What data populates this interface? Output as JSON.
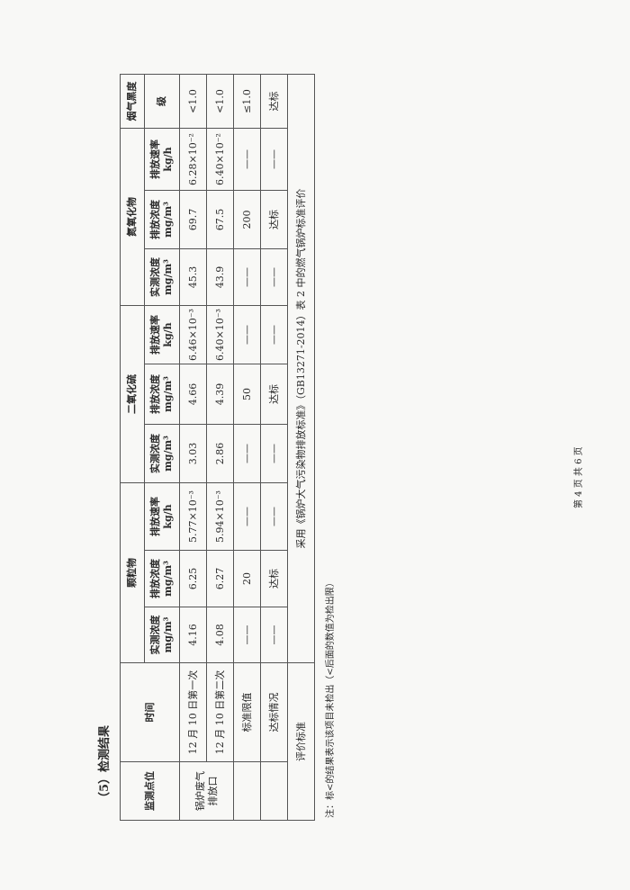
{
  "section_title": "（5）检测结果",
  "headers": {
    "location": "监测点位",
    "time": "时间",
    "groups": [
      "颗粒物",
      "二氧化硫",
      "氮氧化物",
      "烟气黑度"
    ],
    "measured_conc": "实测浓度",
    "emission_conc": "排放浓度",
    "emission_rate": "排放速率",
    "unit_conc": "mg/m³",
    "unit_rate": "kg/h",
    "smoke_unit": "级"
  },
  "location_name": "锅炉废气排放口",
  "rows": [
    {
      "time": "12 月 10 日第一次",
      "values": [
        "4.16",
        "6.25",
        "5.77×10⁻³",
        "3.03",
        "4.66",
        "6.46×10⁻³",
        "45.3",
        "69.7",
        "6.28×10⁻²",
        "<1.0"
      ]
    },
    {
      "time": "12 月 10 日第二次",
      "values": [
        "4.08",
        "6.27",
        "5.94×10⁻³",
        "2.86",
        "4.39",
        "6.40×10⁻³",
        "43.9",
        "67.5",
        "6.40×10⁻²",
        "<1.0"
      ]
    },
    {
      "time": "标准限值",
      "values": [
        "——",
        "20",
        "——",
        "——",
        "50",
        "——",
        "——",
        "200",
        "——",
        "≤1.0"
      ]
    },
    {
      "time": "达标情况",
      "values": [
        "——",
        "达标",
        "——",
        "——",
        "达标",
        "——",
        "——",
        "达标",
        "——",
        "达标"
      ]
    }
  ],
  "evaluation": {
    "label": "评价标准",
    "text": "采用《锅炉大气污染物排放标准》（GB13271-2014）表 2 中的燃气锅炉标准评价"
  },
  "note": "注：标<的结果表示该项目未检出（<后面的数值为检出限）",
  "footer": "第 4 页 共 6 页"
}
